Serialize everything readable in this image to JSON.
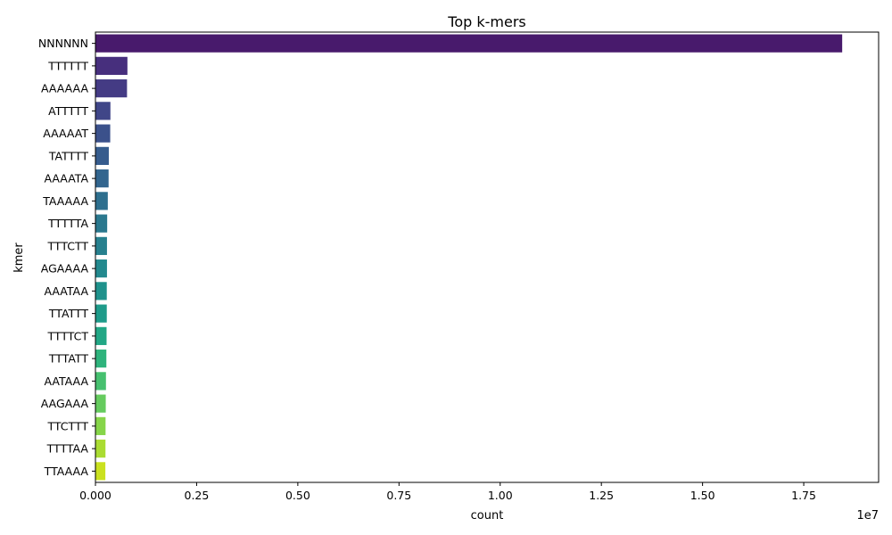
{
  "chart_data": {
    "type": "bar",
    "orientation": "horizontal",
    "title": "Top k-mers",
    "xlabel": "count",
    "ylabel": "kmer",
    "x_offset_text": "1e7",
    "x_ticks": [
      0,
      2500000,
      5000000,
      7500000,
      10000000,
      12500000,
      15000000,
      17500000
    ],
    "x_tick_labels": [
      "0.000",
      "0.25",
      "0.50",
      "0.75",
      "1.00",
      "1.25",
      "1.50",
      "1.75"
    ],
    "xlim": [
      0,
      19350000
    ],
    "grid": false,
    "categories": [
      "NNNNNN",
      "TTTTTT",
      "AAAAAA",
      "ATTTTT",
      "AAAAAT",
      "TATTTT",
      "AAAATA",
      "TAAAAA",
      "TTTTTA",
      "TTTCTT",
      "AGAAAA",
      "AAATAA",
      "TTATTT",
      "TTTTCT",
      "TTTATT",
      "AATAAA",
      "AAGAAA",
      "TTCTTT",
      "TTTTAA",
      "TTAAAA"
    ],
    "values": [
      18450000,
      790000,
      780000,
      370000,
      365000,
      330000,
      325000,
      305000,
      290000,
      285000,
      285000,
      280000,
      280000,
      275000,
      270000,
      260000,
      255000,
      250000,
      248000,
      245000
    ],
    "colors": [
      "#481a6c",
      "#472f7d",
      "#443b84",
      "#404688",
      "#3b518b",
      "#365c8d",
      "#32658e",
      "#2e6f8e",
      "#2a788e",
      "#27808e",
      "#23898e",
      "#1f928c",
      "#1e9b8a",
      "#22a785",
      "#2eb37c",
      "#46c06f",
      "#65cb5e",
      "#86d549",
      "#aadc32",
      "#cae11f"
    ]
  }
}
